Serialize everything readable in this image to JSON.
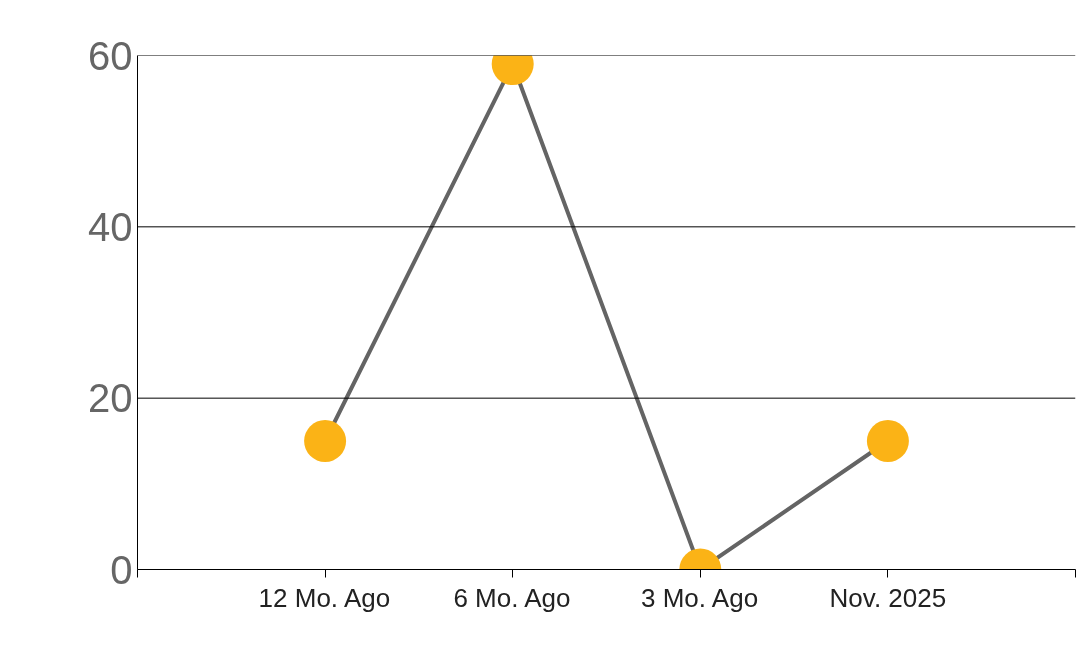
{
  "chart_data": {
    "type": "line",
    "categories": [
      "12 Mo. Ago",
      "6 Mo. Ago",
      "3 Mo. Ago",
      "Nov. 2025"
    ],
    "series": [
      {
        "color": "#646464",
        "colors": [
          "#fbb316",
          "#fbb316",
          "#fbb316",
          "#fbb316"
        ],
        "values": [
          15,
          59,
          0,
          15
        ]
      }
    ],
    "marker": "circle",
    "line_style": "solid",
    "grid": "y",
    "ylim": [
      0,
      60
    ],
    "yticks": [
      0,
      20,
      40,
      60
    ]
  }
}
